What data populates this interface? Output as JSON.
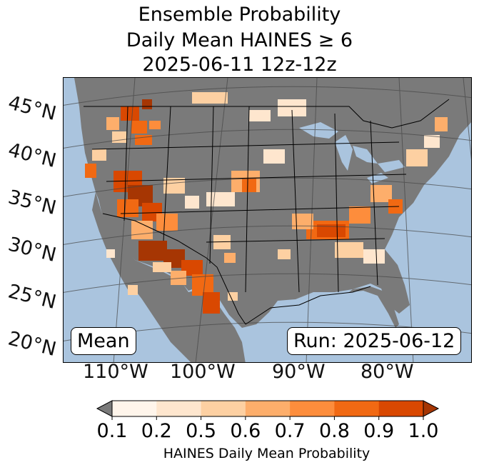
{
  "title": {
    "line1": "Ensemble Probability",
    "line2": "Daily Mean HAINES ≥ 6",
    "line3": "2025-06-11 12z-12z"
  },
  "map": {
    "lat_labels": [
      "45°N",
      "40°N",
      "35°N",
      "30°N",
      "25°N",
      "20°N"
    ],
    "lon_labels": [
      "110°W",
      "100°W",
      "90°W",
      "80°W"
    ],
    "mean_box": "Mean",
    "run_box": "Run: 2025-06-12",
    "colors": {
      "ocean": "#aac4de",
      "land_no_data": "#7a7a7a",
      "borders": "#000000"
    }
  },
  "colorbar": {
    "ticks": [
      "0.1",
      "0.2",
      "0.5",
      "0.6",
      "0.7",
      "0.8",
      "0.9",
      "1.0"
    ],
    "label": "HAINES Daily Mean Probability",
    "colors": [
      "#fff5eb",
      "#fee6ce",
      "#fdd0a2",
      "#fdae6b",
      "#fd8d3c",
      "#f16913",
      "#d94801",
      "#a63603"
    ],
    "under_color": "#7a7a7a"
  }
}
